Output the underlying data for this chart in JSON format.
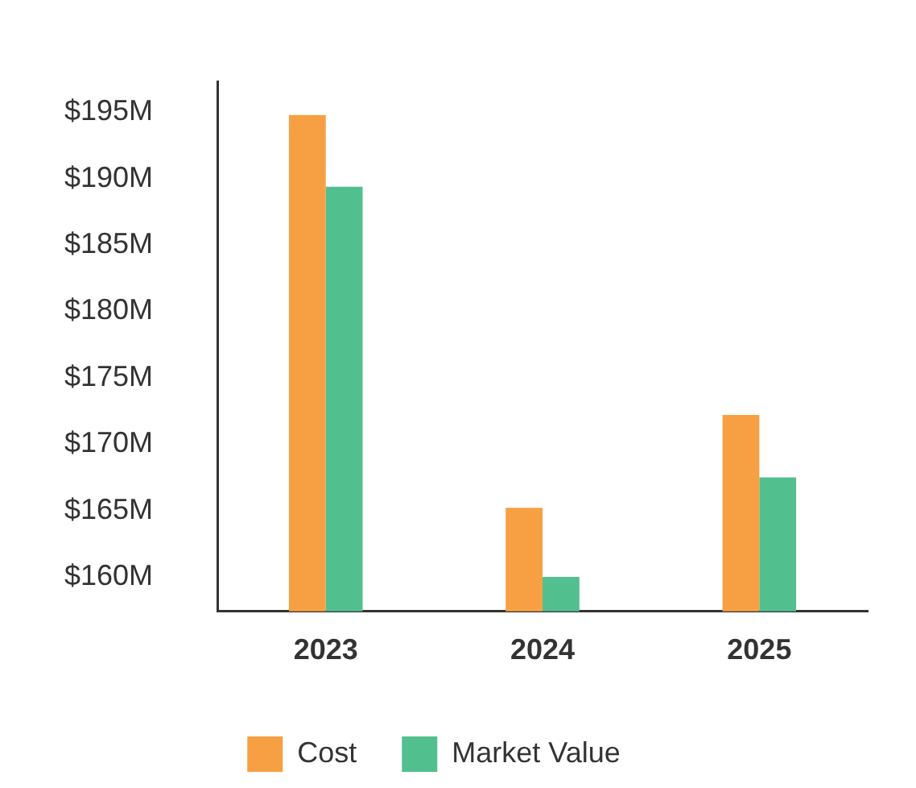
{
  "chart_data": {
    "type": "bar",
    "categories": [
      "2023",
      "2024",
      "2025"
    ],
    "series": [
      {
        "name": "Cost",
        "color": "#f7a043",
        "values": [
          194.8,
          165.2,
          172.2
        ]
      },
      {
        "name": "Market Value",
        "color": "#52bf8f",
        "values": [
          189.4,
          160.0,
          167.5
        ]
      }
    ],
    "ylim": [
      157.4,
      197.3
    ],
    "yticks": [
      {
        "value": 160,
        "label": "$160M"
      },
      {
        "value": 165,
        "label": "$165M"
      },
      {
        "value": 170,
        "label": "$170M"
      },
      {
        "value": 175,
        "label": "$175M"
      },
      {
        "value": 180,
        "label": "$180M"
      },
      {
        "value": 185,
        "label": "$185M"
      },
      {
        "value": 190,
        "label": "$190M"
      },
      {
        "value": 195,
        "label": "$195M"
      }
    ],
    "grid": false,
    "legend": "bottom"
  }
}
